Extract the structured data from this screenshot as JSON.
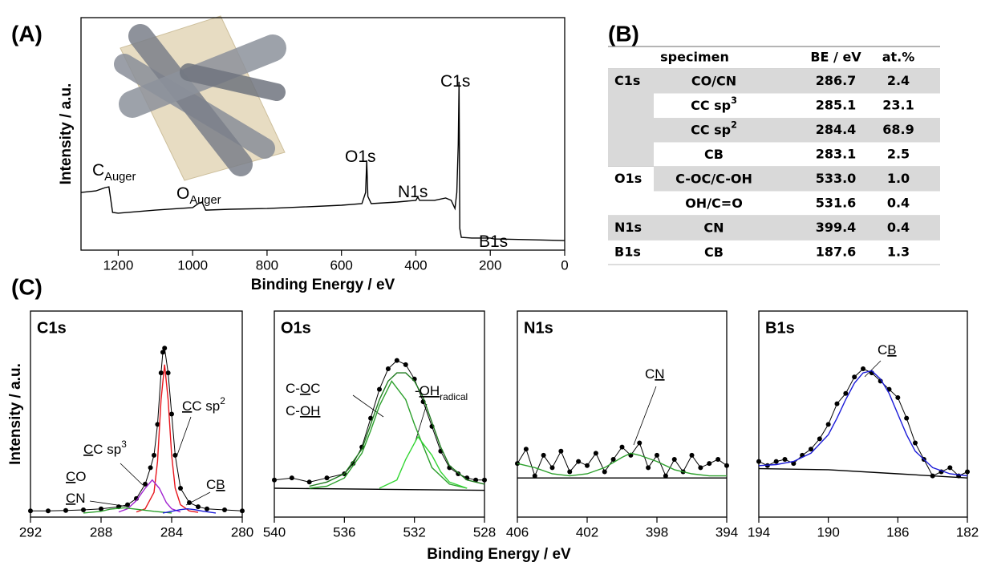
{
  "panel_labels": [
    "(A)",
    "(B)",
    "(C)"
  ],
  "panel_c_x_label": "Binding Energy / eV",
  "chart_data": [
    {
      "type": "line",
      "x_label": "Binding Energy / eV",
      "y_label": "Intensity / a.u.",
      "xlim": [
        1300,
        0
      ],
      "ylim": [
        0,
        100
      ],
      "xticks": [
        1200,
        1000,
        800,
        600,
        400,
        200,
        0
      ],
      "series": [
        {
          "color": "#000000",
          "marker": false,
          "x": [
            1300,
            1260,
            1235,
            1225,
            1215,
            1200,
            1100,
            1000,
            985,
            975,
            965,
            900,
            800,
            700,
            600,
            545,
            535,
            532,
            529,
            520,
            450,
            400,
            395,
            390,
            350,
            320,
            305,
            295,
            290,
            286,
            284,
            282,
            278,
            250,
            200,
            190,
            100,
            0
          ],
          "values": [
            24.8,
            25.5,
            26.9,
            27.2,
            16.2,
            15.9,
            17.2,
            18.3,
            20.0,
            20.7,
            17.2,
            17.6,
            17.9,
            18.6,
            19.3,
            20.0,
            24.8,
            38.6,
            23.1,
            20.0,
            20.7,
            21.4,
            22.8,
            21.4,
            21.4,
            22.4,
            21.4,
            17.9,
            24.8,
            45.5,
            72.4,
            9.3,
            5.5,
            5.2,
            5.2,
            4.8,
            4.5,
            4.1
          ]
        }
      ],
      "annotations": [
        {
          "color": "#000000",
          "parts": [
            {
              "text": "C"
            },
            {
              "text": "Auger",
              "style": "sub"
            }
          ]
        },
        {
          "color": "#000000",
          "parts": [
            {
              "text": "O"
            },
            {
              "text": "Auger",
              "style": "sub"
            }
          ]
        },
        {
          "color": "#000000",
          "parts": [
            {
              "text": "O1s"
            }
          ]
        },
        {
          "color": "#000000",
          "parts": [
            {
              "text": "N1s"
            }
          ]
        },
        {
          "color": "#000000",
          "parts": [
            {
              "text": "C1s"
            }
          ]
        },
        {
          "color": "#000000",
          "parts": [
            {
              "text": "B1s"
            }
          ]
        }
      ]
    },
    {
      "type": "line",
      "title": "C1s",
      "y_label": "Intensity / a.u.",
      "xlim": [
        292,
        280
      ],
      "ylim": [
        0,
        100
      ],
      "xticks": [
        292,
        288,
        284,
        280
      ],
      "series": [
        {
          "color": "#000000",
          "marker": true,
          "x": [
            292,
            291,
            290,
            289,
            288,
            287,
            286.5,
            286,
            285.5,
            285.2,
            285,
            284.8,
            284.6,
            284.5,
            284.4,
            284.2,
            284,
            283.8,
            283.5,
            283,
            282.5,
            282,
            281,
            280
          ],
          "values": [
            3,
            3,
            3.2,
            3.5,
            4,
            5,
            6,
            9,
            16,
            24,
            30,
            45,
            70,
            80,
            82,
            70,
            50,
            30,
            14,
            7,
            5,
            4,
            3.5,
            3
          ]
        },
        {
          "color": "#e8141b",
          "marker": false,
          "x": [
            286,
            285.5,
            285,
            284.8,
            284.6,
            284.4,
            284.2,
            284,
            283.8,
            283.5,
            283,
            282.5
          ],
          "values": [
            2.5,
            4,
            12,
            27,
            57,
            74,
            57,
            30,
            14,
            6,
            3,
            2.3
          ]
        },
        {
          "color": "#a020d0",
          "marker": false,
          "x": [
            287,
            286.5,
            286,
            285.5,
            285.1,
            284.7,
            284.3,
            284,
            283.5
          ],
          "values": [
            2.5,
            4,
            8,
            14,
            18,
            14,
            7,
            4,
            2.5
          ]
        },
        {
          "color": "#2ca02c",
          "marker": false,
          "x": [
            289,
            288,
            287.5,
            286.7,
            286,
            285,
            284
          ],
          "values": [
            2,
            2.8,
            3.8,
            4.5,
            3.8,
            2.8,
            2
          ]
        },
        {
          "color": "#1a1ad8",
          "marker": false,
          "x": [
            284.5,
            284,
            283.5,
            283.1,
            282.7,
            282.2,
            281.5
          ],
          "values": [
            2,
            2.8,
            3.6,
            4,
            3.6,
            2.8,
            2
          ]
        }
      ],
      "annotations": [
        {
          "color": "#2ca02c",
          "parts": [
            {
              "text": "C",
              "style": "underline"
            },
            {
              "text": "O"
            }
          ]
        },
        {
          "color": "#2ca02c",
          "parts": [
            {
              "text": "C",
              "style": "underline"
            },
            {
              "text": "N"
            }
          ]
        },
        {
          "color": "#a020d0",
          "parts": [
            {
              "text": "C",
              "style": "underline"
            },
            {
              "text": "C sp"
            },
            {
              "text": "3",
              "style": "sup"
            }
          ]
        },
        {
          "color": "#e8141b",
          "parts": [
            {
              "text": "C",
              "style": "underline"
            },
            {
              "text": "C sp"
            },
            {
              "text": "2",
              "style": "sup"
            }
          ]
        },
        {
          "color": "#1a1ad8",
          "parts": [
            {
              "text": "C"
            },
            {
              "text": "B",
              "style": "underline"
            }
          ]
        }
      ]
    },
    {
      "type": "line",
      "title": "O1s",
      "xlim": [
        540,
        528
      ],
      "ylim": [
        0,
        100
      ],
      "xticks": [
        540,
        536,
        532,
        528
      ],
      "series": [
        {
          "color": "#000000",
          "marker": true,
          "x": [
            540,
            539,
            538,
            537,
            536,
            535.5,
            535,
            534.5,
            534,
            533.5,
            533,
            532.5,
            532,
            531.5,
            531,
            530.5,
            530,
            529.5,
            529,
            528.5,
            528
          ],
          "values": [
            18,
            19,
            17,
            19,
            21,
            26,
            34,
            48,
            62,
            72,
            76,
            74,
            67,
            56,
            44,
            32,
            24,
            21,
            19,
            18,
            18
          ]
        },
        {
          "color": "#000000",
          "marker": false,
          "x": [
            540,
            528
          ],
          "values": [
            14,
            13
          ]
        },
        {
          "color": "#2ca02c",
          "marker": false,
          "x": [
            538,
            537,
            536,
            535,
            534.5,
            534,
            533.3,
            532.5,
            532,
            531,
            530,
            529
          ],
          "values": [
            14,
            15,
            19,
            31,
            42,
            54,
            66,
            57,
            45,
            24,
            16,
            14
          ]
        },
        {
          "color": "#33d633",
          "marker": false,
          "x": [
            534,
            533,
            532.5,
            531.8,
            531,
            530.5,
            530,
            529
          ],
          "values": [
            14,
            18,
            28,
            39,
            30,
            22,
            17,
            14
          ]
        },
        {
          "color": "#1e7a1e",
          "marker": false,
          "x": [
            538,
            537,
            536,
            535,
            534.5,
            534,
            533.5,
            533,
            532.5,
            532,
            531.5,
            531,
            530.5,
            530,
            529,
            528
          ],
          "values": [
            15,
            17,
            21,
            33,
            45,
            57,
            66,
            70,
            70,
            66,
            58,
            46,
            34,
            25,
            18,
            16
          ]
        }
      ],
      "annotations": [
        {
          "color": "#1e7a1e",
          "parts": [
            {
              "text": "C-"
            },
            {
              "text": "O",
              "style": "underline"
            },
            {
              "text": "C"
            }
          ]
        },
        {
          "color": "#1e7a1e",
          "parts": [
            {
              "text": "C-"
            },
            {
              "text": "OH",
              "style": "underline"
            }
          ]
        },
        {
          "color": "#33d633",
          "parts": [
            {
              "text": "-"
            },
            {
              "text": "OH",
              "style": "underline"
            },
            {
              "text": "radical",
              "style": "sub"
            }
          ]
        }
      ]
    },
    {
      "type": "line",
      "title": "N1s",
      "xlim": [
        406,
        394
      ],
      "ylim": [
        0,
        100
      ],
      "xticks": [
        406,
        402,
        398,
        394
      ],
      "series": [
        {
          "color": "#000000",
          "marker": true,
          "x": [
            406,
            405.5,
            405,
            404.5,
            404,
            403.5,
            403,
            402.5,
            402,
            401.5,
            401,
            400.5,
            400,
            399.5,
            399,
            398.5,
            398,
            397.5,
            397,
            396.5,
            396,
            395.5,
            395,
            394.5,
            394
          ],
          "values": [
            26,
            33,
            20,
            30,
            24,
            32,
            22,
            27,
            25,
            31,
            22,
            28,
            34,
            30,
            36,
            24,
            30,
            20,
            28,
            22,
            30,
            24,
            26,
            28,
            25
          ]
        },
        {
          "color": "#000000",
          "marker": false,
          "x": [
            406,
            394
          ],
          "values": [
            19,
            19
          ]
        },
        {
          "color": "#2ca02c",
          "marker": false,
          "x": [
            406,
            405,
            404,
            403,
            402,
            401,
            400,
            399.5,
            399,
            398,
            397,
            396,
            395,
            394
          ],
          "values": [
            26,
            24,
            21,
            20,
            21,
            24,
            29,
            31,
            30,
            27,
            23,
            21,
            20,
            20
          ]
        }
      ],
      "annotations": [
        {
          "color": "#2ca02c",
          "parts": [
            {
              "text": "C"
            },
            {
              "text": "N",
              "style": "underline"
            }
          ]
        }
      ]
    },
    {
      "type": "line",
      "title": "B1s",
      "xlim": [
        194,
        182
      ],
      "ylim": [
        0,
        100
      ],
      "xticks": [
        194,
        190,
        186,
        182
      ],
      "series": [
        {
          "color": "#000000",
          "marker": true,
          "x": [
            194,
            193.5,
            193,
            192.5,
            192,
            191.5,
            191,
            190.5,
            190,
            189.5,
            189,
            188.5,
            188,
            187.5,
            187,
            186.5,
            186,
            185.5,
            185,
            184.5,
            184,
            183.5,
            183,
            182.5,
            182
          ],
          "values": [
            27,
            25,
            27,
            28,
            26,
            30,
            33,
            38,
            45,
            55,
            60,
            68,
            72,
            70,
            66,
            62,
            58,
            48,
            36,
            28,
            20,
            22,
            24,
            20,
            22
          ]
        },
        {
          "color": "#000000",
          "marker": false,
          "x": [
            194,
            190,
            186,
            182
          ],
          "values": [
            23.5,
            23,
            21,
            19
          ]
        },
        {
          "color": "#1a1ad8",
          "marker": false,
          "x": [
            194,
            193,
            192,
            191,
            190,
            189.5,
            189,
            188.5,
            188,
            187.5,
            187,
            186.5,
            186,
            185.5,
            185,
            184,
            183,
            182
          ],
          "values": [
            25,
            25.5,
            27,
            31,
            40,
            48,
            57,
            65,
            70,
            71,
            67,
            60,
            50,
            40,
            32,
            24,
            21,
            20
          ]
        }
      ],
      "annotations": [
        {
          "color": "#1a1ad8",
          "parts": [
            {
              "text": "C"
            },
            {
              "text": "B",
              "style": "underline"
            }
          ]
        }
      ]
    }
  ],
  "table": {
    "header": [
      "specimen",
      "BE / eV",
      "at.%"
    ],
    "groups": [
      {
        "label": "C1s",
        "shaded": true,
        "rows": [
          {
            "name": "CO/CN",
            "be": "286.7",
            "at": "2.4",
            "color": "#2ca02c",
            "shaded": true
          },
          {
            "name": "CC sp",
            "sup": "3",
            "be": "285.1",
            "at": "23.1",
            "color": "#7b3fa0",
            "shaded": false
          },
          {
            "name": "CC sp",
            "sup": "2",
            "be": "284.4",
            "at": "68.9",
            "color": "#e8141b",
            "shaded": true
          },
          {
            "name": "CB",
            "be": "283.1",
            "at": "2.5",
            "color": "#1a1ad8",
            "shaded": false
          }
        ]
      },
      {
        "label": "O1s",
        "shaded": false,
        "rows": [
          {
            "name": "C-OC/C-OH",
            "be": "533.0",
            "at": "1.0",
            "color": "#2ca02c",
            "shaded": true
          },
          {
            "name": "OH/C=O",
            "be": "531.6",
            "at": "0.4",
            "color": "#33d633",
            "shaded": false
          }
        ]
      },
      {
        "label": "N1s",
        "shaded": true,
        "rows": [
          {
            "name": "CN",
            "be": "399.4",
            "at": "0.4",
            "color": "#2ca02c",
            "shaded": true
          }
        ]
      },
      {
        "label": "B1s",
        "shaded": false,
        "rows": [
          {
            "name": "CB",
            "be": "187.6",
            "at": "1.3",
            "color": "#1a1ad8",
            "shaded": false
          }
        ]
      }
    ]
  }
}
